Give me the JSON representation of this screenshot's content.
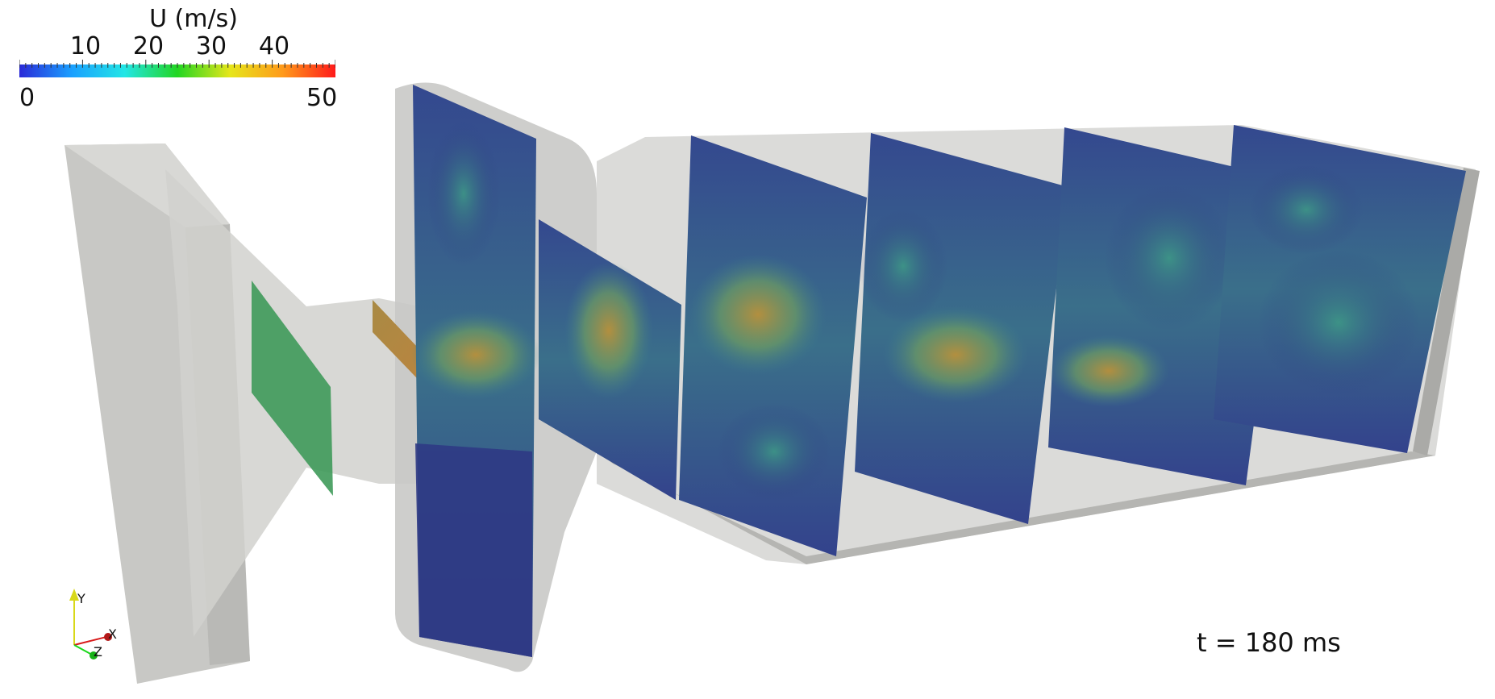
{
  "colorbar": {
    "title": "U (m/s)",
    "min_label": "0",
    "max_label": "50",
    "tick_labels": [
      "10",
      "20",
      "30",
      "40"
    ],
    "tick_values": [
      10,
      20,
      30,
      40
    ],
    "range": [
      0,
      50
    ],
    "colors": [
      "#2a2ad8",
      "#1aa0ff",
      "#22e6e6",
      "#22d622",
      "#e6e61a",
      "#ff9a1a",
      "#ff1a1a"
    ]
  },
  "annotation": {
    "time_label": "t = 180 ms"
  },
  "axes_triad": {
    "y": "Y",
    "x": "X",
    "z": "Z",
    "y_color": "#d8d81a",
    "x_color": "#d81a1a",
    "z_color": "#1ad81a"
  },
  "colors": {
    "geometry_gray": "#c8c8c5",
    "slice_base": "#2f3a84",
    "slice_mid": "#3f7f8a",
    "slice_hot": "#b28d3e"
  }
}
